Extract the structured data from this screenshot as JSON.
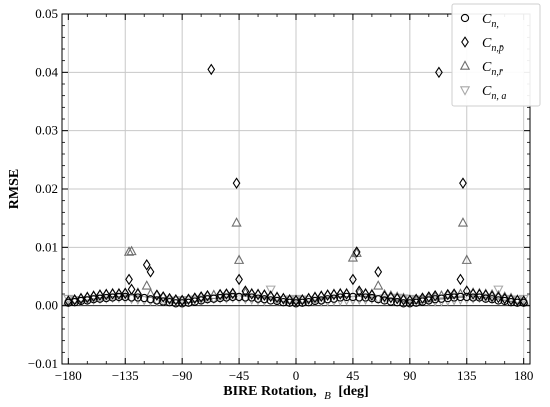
{
  "chart_data": {
    "type": "scatter",
    "xlabel": "BIRE Rotation,",
    "xlabel_sub": "B",
    "xlabel_unit": "[deg]",
    "ylabel": "RMSE",
    "xlim": [
      -185,
      185
    ],
    "ylim": [
      -0.01,
      0.05
    ],
    "xticks": [
      -180,
      -135,
      -90,
      -45,
      0,
      45,
      90,
      135,
      180
    ],
    "xtick_labels": [
      "−180",
      "−135",
      "−90",
      "−45",
      "0",
      "45",
      "90",
      "135",
      "180"
    ],
    "yticks": [
      -0.01,
      0,
      0.01,
      0.02,
      0.03,
      0.04,
      0.05
    ],
    "ytick_labels": [
      "−0.01",
      "0.00",
      "0.01",
      "0.02",
      "0.03",
      "0.04",
      "0.05"
    ],
    "grid": true,
    "legend_position": "top-right",
    "series": [
      {
        "name": "C",
        "sub": "n,",
        "marker": "circle",
        "color": "#000000",
        "x": [
          -180,
          -175,
          -170,
          -165,
          -160,
          -155,
          -150,
          -145,
          -140,
          -135,
          -130,
          -125,
          -120,
          -115,
          -110,
          -105,
          -100,
          -95,
          -90,
          -85,
          -80,
          -75,
          -70,
          -65,
          -60,
          -55,
          -50,
          -45,
          -40,
          -35,
          -30,
          -25,
          -20,
          -15,
          -10,
          -5,
          0,
          5,
          10,
          15,
          20,
          25,
          30,
          35,
          40,
          45,
          50,
          55,
          60,
          65,
          70,
          75,
          80,
          85,
          90,
          95,
          100,
          105,
          110,
          115,
          120,
          125,
          130,
          135,
          140,
          145,
          150,
          155,
          160,
          165,
          170,
          175,
          180
        ],
        "y": [
          0.0005,
          0.0006,
          0.0008,
          0.0009,
          0.0011,
          0.0012,
          0.0013,
          0.0014,
          0.0015,
          0.0015,
          0.0014,
          0.0014,
          0.0013,
          0.0011,
          0.0009,
          0.0007,
          0.0006,
          0.0004,
          0.0004,
          0.0005,
          0.0007,
          0.0009,
          0.0011,
          0.0012,
          0.0013,
          0.0014,
          0.0015,
          0.0015,
          0.0014,
          0.0014,
          0.0012,
          0.0011,
          0.0009,
          0.0008,
          0.0006,
          0.0005,
          0.0004,
          0.0005,
          0.0006,
          0.0008,
          0.0009,
          0.0011,
          0.0012,
          0.0014,
          0.0015,
          0.0015,
          0.0014,
          0.0014,
          0.0013,
          0.0011,
          0.0009,
          0.0007,
          0.0006,
          0.0004,
          0.0004,
          0.0005,
          0.0007,
          0.0009,
          0.0011,
          0.0012,
          0.0013,
          0.0014,
          0.0015,
          0.0015,
          0.0014,
          0.0014,
          0.0012,
          0.0011,
          0.0009,
          0.0008,
          0.0006,
          0.0005,
          0.0005
        ]
      },
      {
        "name": "C",
        "sub": "n,p̄",
        "marker": "diamond",
        "color": "#000000",
        "x": [
          -180,
          -175,
          -170,
          -165,
          -160,
          -155,
          -150,
          -145,
          -140,
          -135,
          -132,
          -130,
          -125,
          -118,
          -115,
          -110,
          -105,
          -100,
          -95,
          -90,
          -85,
          -80,
          -75,
          -70,
          -67,
          -60,
          -55,
          -50,
          -47,
          -45,
          -40,
          -35,
          -30,
          -25,
          -20,
          -15,
          -10,
          -5,
          0,
          5,
          10,
          15,
          20,
          25,
          30,
          35,
          40,
          45,
          48,
          50,
          55,
          60,
          65,
          70,
          75,
          80,
          85,
          90,
          95,
          100,
          105,
          110,
          113,
          120,
          125,
          130,
          132,
          135,
          140,
          145,
          150,
          155,
          160,
          165,
          170,
          175,
          180
        ],
        "y": [
          0.0008,
          0.001,
          0.0012,
          0.0014,
          0.0016,
          0.0018,
          0.0019,
          0.002,
          0.002,
          0.0021,
          0.0045,
          0.0028,
          0.002,
          0.007,
          0.0058,
          0.0018,
          0.0015,
          0.0012,
          0.001,
          0.0009,
          0.0011,
          0.0013,
          0.0015,
          0.0017,
          0.0405,
          0.0019,
          0.002,
          0.0021,
          0.021,
          0.0045,
          0.0025,
          0.002,
          0.0019,
          0.0018,
          0.0016,
          0.0014,
          0.0012,
          0.001,
          0.0009,
          0.001,
          0.0012,
          0.0014,
          0.0016,
          0.0018,
          0.0019,
          0.002,
          0.002,
          0.0045,
          0.0092,
          0.0025,
          0.002,
          0.0018,
          0.0058,
          0.0016,
          0.0014,
          0.0012,
          0.001,
          0.0009,
          0.0011,
          0.0013,
          0.0015,
          0.0017,
          0.04,
          0.0019,
          0.002,
          0.0045,
          0.021,
          0.0025,
          0.002,
          0.0019,
          0.0018,
          0.0016,
          0.0014,
          0.0012,
          0.001,
          0.0009,
          0.0008
        ]
      },
      {
        "name": "C",
        "sub": "n,r̄",
        "marker": "triangle-up",
        "color": "#6e6e6e",
        "x": [
          -180,
          -175,
          -170,
          -165,
          -160,
          -155,
          -150,
          -145,
          -140,
          -135,
          -132,
          -130,
          -125,
          -118,
          -115,
          -110,
          -105,
          -100,
          -95,
          -90,
          -85,
          -80,
          -75,
          -70,
          -65,
          -60,
          -55,
          -50,
          -47,
          -45,
          -40,
          -35,
          -30,
          -25,
          -20,
          -15,
          -10,
          -5,
          0,
          5,
          10,
          15,
          20,
          25,
          30,
          35,
          40,
          45,
          48,
          50,
          55,
          60,
          65,
          70,
          75,
          80,
          85,
          90,
          95,
          100,
          105,
          110,
          115,
          120,
          125,
          130,
          132,
          135,
          140,
          145,
          150,
          155,
          160,
          165,
          170,
          175,
          180
        ],
        "y": [
          0.0008,
          0.001,
          0.0013,
          0.0015,
          0.0017,
          0.0019,
          0.002,
          0.0021,
          0.0021,
          0.0022,
          0.0092,
          0.0093,
          0.0022,
          0.0034,
          0.002,
          0.0018,
          0.0015,
          0.0012,
          0.001,
          0.0009,
          0.0011,
          0.0013,
          0.0015,
          0.0017,
          0.0018,
          0.0019,
          0.002,
          0.0021,
          0.0142,
          0.0078,
          0.0022,
          0.0021,
          0.002,
          0.0019,
          0.0017,
          0.0015,
          0.0013,
          0.001,
          0.0009,
          0.001,
          0.0013,
          0.0015,
          0.0017,
          0.0019,
          0.002,
          0.0021,
          0.0021,
          0.0082,
          0.009,
          0.0022,
          0.0021,
          0.002,
          0.0034,
          0.0019,
          0.0017,
          0.0015,
          0.0013,
          0.001,
          0.0009,
          0.0011,
          0.0013,
          0.0015,
          0.0017,
          0.0018,
          0.0019,
          0.002,
          0.0142,
          0.0078,
          0.0022,
          0.0021,
          0.002,
          0.0019,
          0.0017,
          0.0015,
          0.0013,
          0.001,
          0.0008
        ]
      },
      {
        "name": "C",
        "sub": "n, a",
        "marker": "triangle-down",
        "color": "#a8a8a8",
        "x": [
          -180,
          -175,
          -170,
          -165,
          -160,
          -155,
          -150,
          -145,
          -140,
          -135,
          -130,
          -125,
          -120,
          -115,
          -110,
          -105,
          -100,
          -95,
          -90,
          -85,
          -80,
          -75,
          -70,
          -65,
          -60,
          -55,
          -50,
          -45,
          -40,
          -35,
          -30,
          -25,
          -20,
          -15,
          -10,
          -5,
          0,
          5,
          10,
          15,
          20,
          25,
          30,
          35,
          40,
          45,
          50,
          55,
          60,
          65,
          70,
          75,
          80,
          85,
          90,
          95,
          100,
          105,
          110,
          115,
          120,
          125,
          130,
          135,
          140,
          145,
          150,
          155,
          160,
          165,
          170,
          175,
          180
        ],
        "y": [
          0.0012,
          0.001,
          0.0009,
          0.001,
          0.0011,
          0.0012,
          0.0013,
          0.0014,
          0.0014,
          0.0013,
          0.0012,
          0.0011,
          0.001,
          0.0009,
          0.0008,
          0.0008,
          0.0009,
          0.0009,
          0.001,
          0.001,
          0.0011,
          0.0011,
          0.0012,
          0.0012,
          0.0013,
          0.0013,
          0.0014,
          0.0013,
          0.0012,
          0.0011,
          0.001,
          0.0009,
          0.0028,
          0.0009,
          0.001,
          0.0011,
          0.0012,
          0.0011,
          0.001,
          0.0009,
          0.0008,
          0.0008,
          0.0009,
          0.0009,
          0.001,
          0.001,
          0.0011,
          0.0011,
          0.0012,
          0.0012,
          0.0013,
          0.0013,
          0.0014,
          0.0013,
          0.0012,
          0.0011,
          0.001,
          0.0009,
          0.0008,
          0.0008,
          0.0009,
          0.001,
          0.0011,
          0.0012,
          0.0013,
          0.0014,
          0.0014,
          0.0013,
          0.0028,
          0.0012,
          0.0011,
          0.001,
          0.0012
        ]
      }
    ]
  }
}
